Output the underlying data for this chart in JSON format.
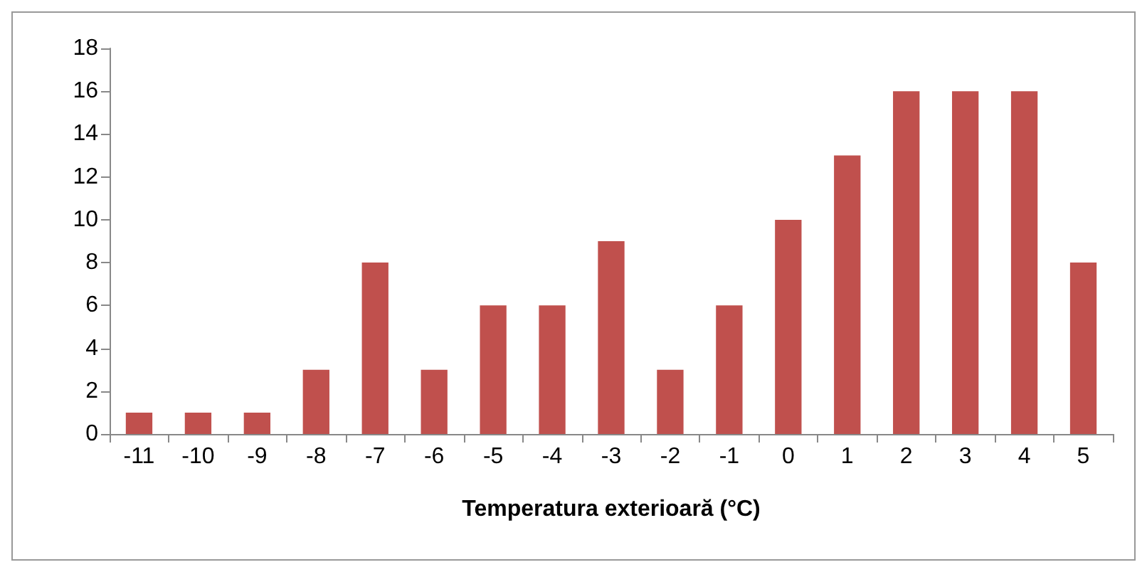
{
  "chart_data": {
    "type": "bar",
    "xlabel": "Temperatura exterioară (°C)",
    "categories": [
      "-11",
      "-10",
      "-9",
      "-8",
      "-7",
      "-6",
      "-5",
      "-4",
      "-3",
      "-2",
      "-1",
      "0",
      "1",
      "2",
      "3",
      "4",
      "5"
    ],
    "values": [
      1,
      1,
      1,
      3,
      8,
      3,
      6,
      6,
      9,
      3,
      6,
      10,
      13,
      16,
      16,
      16,
      8
    ],
    "color": "#c0504d",
    "ylim": [
      0,
      18
    ],
    "yticks": [
      0,
      2,
      4,
      6,
      8,
      10,
      12,
      14,
      16,
      18
    ],
    "grid": false
  }
}
